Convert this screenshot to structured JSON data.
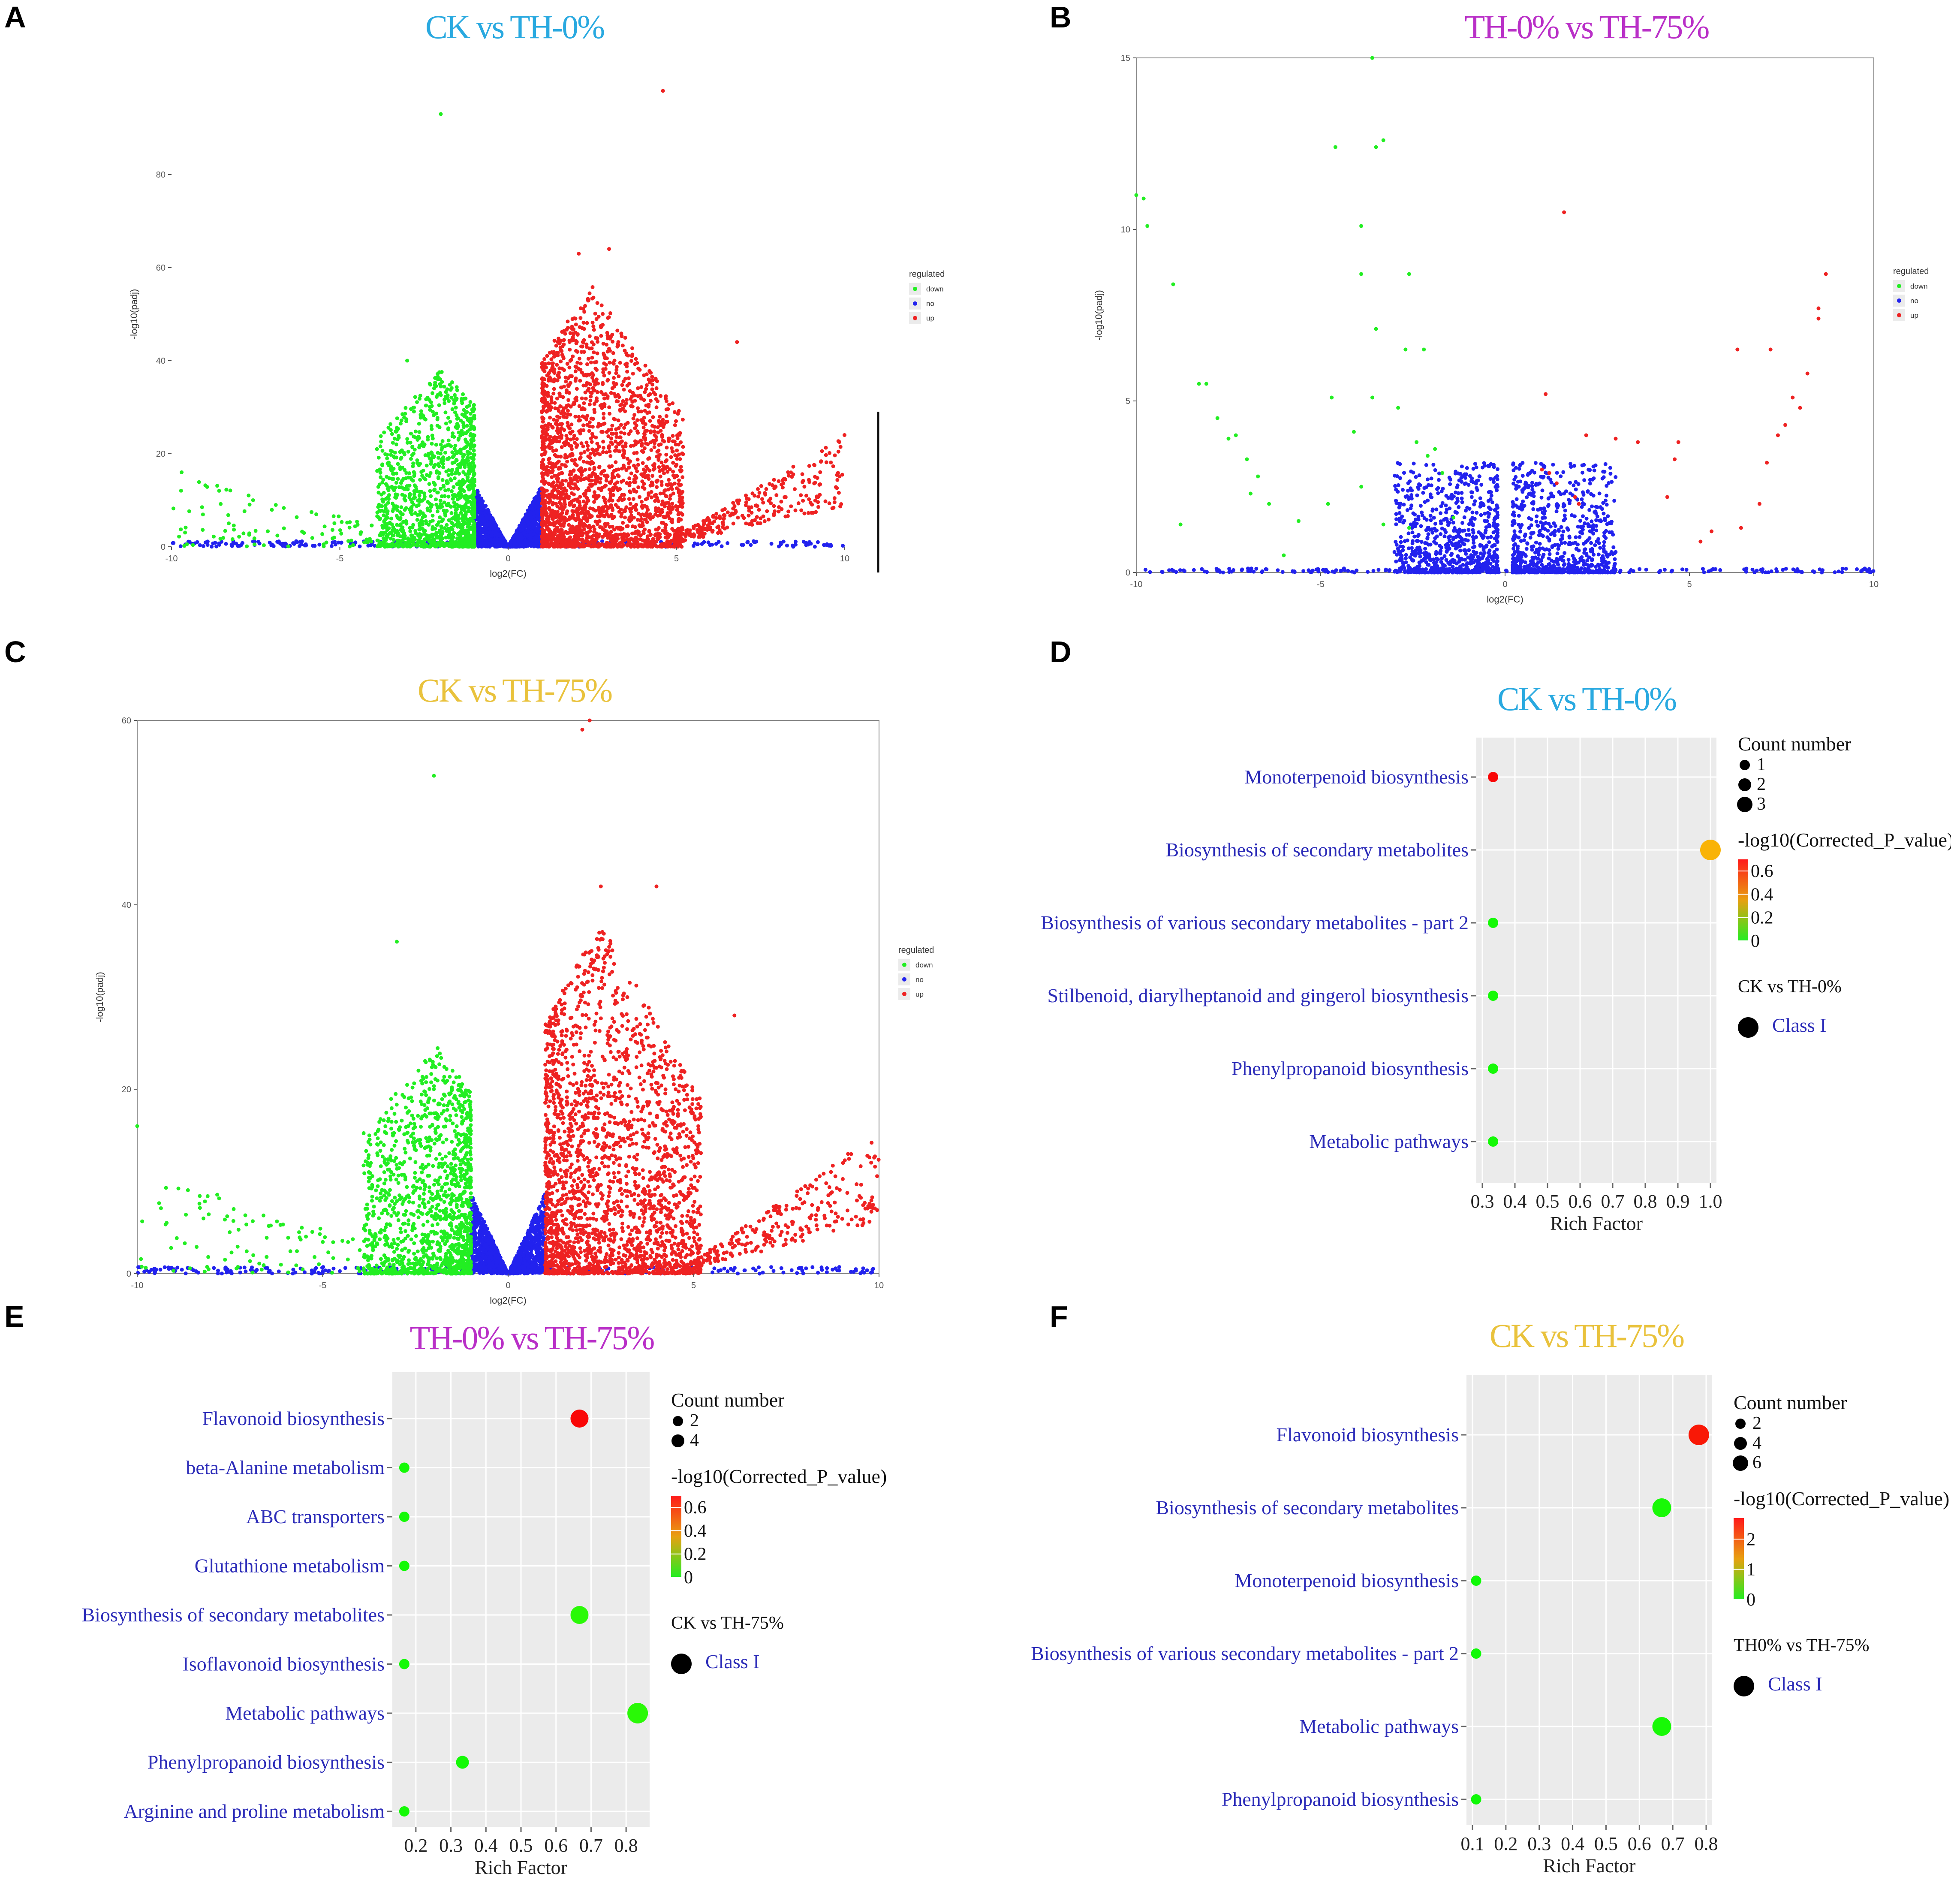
{
  "panels": {
    "A": {
      "label": "A",
      "title": "CK vs TH-0%",
      "title_color": "#29a9e0"
    },
    "B": {
      "label": "B",
      "title": "TH-0% vs TH-75%",
      "title_color": "#b92fc7"
    },
    "C": {
      "label": "C",
      "title": "CK vs TH-75%",
      "title_color": "#e9c23c"
    },
    "D": {
      "label": "D",
      "title": "CK vs TH-0%",
      "title_color": "#29a9e0"
    },
    "E": {
      "label": "E",
      "title": "TH-0% vs TH-75%",
      "title_color": "#b92fc7"
    },
    "F": {
      "label": "F",
      "title": "CK vs TH-75%",
      "title_color": "#e9c23c"
    }
  },
  "colors": {
    "down": "#22ee22",
    "no": "#2222ee",
    "up": "#ee2222",
    "panel_bg": "#ebebeb"
  },
  "chart_data": [
    {
      "id": "A",
      "type": "scatter",
      "title": "CK vs TH-0%",
      "xlabel": "log2(FC)",
      "ylabel": "-log10(padj)",
      "xlim": [
        -10,
        10
      ],
      "ylim": [
        0,
        100
      ],
      "xticks": [
        -10,
        -5,
        0,
        5,
        10
      ],
      "yticks": [
        0,
        20,
        40,
        60,
        80
      ],
      "legend": {
        "title": "regulated",
        "entries": [
          "down",
          "no",
          "up"
        ]
      },
      "highlights": [
        {
          "x": -2.0,
          "y": 93,
          "group": "down"
        },
        {
          "x": 4.6,
          "y": 98,
          "group": "up"
        },
        {
          "x": 2.1,
          "y": 63,
          "group": "up"
        },
        {
          "x": 3.0,
          "y": 64,
          "group": "up"
        },
        {
          "x": 6.8,
          "y": 44,
          "group": "up"
        },
        {
          "x": -3.0,
          "y": 40,
          "group": "down"
        },
        {
          "x": -9.7,
          "y": 16,
          "group": "down"
        }
      ],
      "shape": {
        "down_max": 38,
        "up_max": 56,
        "down_tail_max": 16,
        "up_tail_max": 22,
        "threshold": 1
      }
    },
    {
      "id": "B",
      "type": "scatter",
      "title": "TH-0% vs TH-75%",
      "xlabel": "log2(FC)",
      "ylabel": "-log10(padj)",
      "xlim": [
        -10,
        10
      ],
      "ylim": [
        0,
        15
      ],
      "xticks": [
        -10,
        -5,
        0,
        5,
        10
      ],
      "yticks": [
        0,
        5,
        10,
        15
      ],
      "legend": {
        "title": "regulated",
        "entries": [
          "down",
          "no",
          "up"
        ]
      },
      "down_points": [
        [
          -3.6,
          15
        ],
        [
          -10,
          11.0
        ],
        [
          -9.8,
          10.9
        ],
        [
          -9.7,
          10.1
        ],
        [
          -4.6,
          12.4
        ],
        [
          -3.5,
          12.4
        ],
        [
          -3.3,
          12.6
        ],
        [
          -3.9,
          10.1
        ],
        [
          -3.9,
          8.7
        ],
        [
          -2.6,
          8.7
        ],
        [
          -9.0,
          8.4
        ],
        [
          -3.5,
          7.1
        ],
        [
          -2.2,
          6.5
        ],
        [
          -2.7,
          6.5
        ],
        [
          -8.3,
          5.5
        ],
        [
          -8.1,
          5.5
        ],
        [
          -4.7,
          5.1
        ],
        [
          -3.6,
          5.1
        ],
        [
          -2.9,
          4.8
        ],
        [
          -7.8,
          4.5
        ],
        [
          -7.3,
          4.0
        ],
        [
          -7.5,
          3.9
        ],
        [
          -1.9,
          3.6
        ],
        [
          -2.1,
          3.4
        ],
        [
          -7.0,
          3.3
        ],
        [
          -6.7,
          2.8
        ],
        [
          -6.9,
          2.3
        ],
        [
          -3.9,
          2.5
        ],
        [
          -4.8,
          2.0
        ],
        [
          -6.4,
          2.0
        ],
        [
          -8.8,
          1.4
        ],
        [
          -5.6,
          1.5
        ],
        [
          -3.3,
          1.4
        ],
        [
          -1.4,
          1.6
        ],
        [
          -2.6,
          1.3
        ],
        [
          -4.1,
          4.1
        ],
        [
          -2.4,
          3.8
        ],
        [
          -1.7,
          2.9
        ],
        [
          -6.0,
          0.5
        ]
      ],
      "up_points": [
        [
          1.6,
          10.5
        ],
        [
          8.7,
          8.7
        ],
        [
          8.5,
          7.7
        ],
        [
          8.5,
          7.4
        ],
        [
          6.3,
          6.5
        ],
        [
          7.2,
          6.5
        ],
        [
          8.2,
          5.8
        ],
        [
          1.1,
          5.2
        ],
        [
          7.8,
          5.1
        ],
        [
          8.0,
          4.8
        ],
        [
          7.6,
          4.3
        ],
        [
          7.4,
          4.0
        ],
        [
          7.1,
          3.2
        ],
        [
          4.7,
          3.8
        ],
        [
          2.2,
          4.0
        ],
        [
          3.0,
          3.9
        ],
        [
          3.6,
          3.8
        ],
        [
          4.6,
          3.3
        ],
        [
          6.9,
          2.0
        ],
        [
          1.2,
          2.9
        ],
        [
          1.0,
          3.0
        ],
        [
          1.4,
          2.6
        ],
        [
          4.4,
          2.2
        ],
        [
          5.6,
          1.2
        ],
        [
          5.3,
          0.9
        ],
        [
          6.4,
          1.3
        ],
        [
          2.0,
          2.0
        ],
        [
          1.9,
          2.2
        ]
      ]
    },
    {
      "id": "C",
      "type": "scatter",
      "title": "CK vs TH-75%",
      "xlabel": "log2(FC)",
      "ylabel": "-log10(padj)",
      "xlim": [
        -10,
        10
      ],
      "ylim": [
        0,
        60
      ],
      "xticks": [
        -10,
        -5,
        0,
        5,
        10
      ],
      "yticks": [
        0,
        20,
        40,
        60
      ],
      "legend": {
        "title": "regulated",
        "entries": [
          "down",
          "no",
          "up"
        ]
      },
      "highlights": [
        {
          "x": -2.0,
          "y": 54,
          "group": "down"
        },
        {
          "x": 2.0,
          "y": 59,
          "group": "up"
        },
        {
          "x": 2.2,
          "y": 60,
          "group": "up"
        },
        {
          "x": 2.5,
          "y": 42,
          "group": "up"
        },
        {
          "x": 4.0,
          "y": 42,
          "group": "up"
        },
        {
          "x": 6.1,
          "y": 28,
          "group": "up"
        },
        {
          "x": -3.0,
          "y": 36,
          "group": "down"
        },
        {
          "x": -10,
          "y": 16,
          "group": "down"
        }
      ],
      "shape": {
        "down_max": 25,
        "up_max": 38,
        "down_tail_max": 12,
        "up_tail_max": 14,
        "threshold": 1
      }
    },
    {
      "id": "D",
      "type": "scatter",
      "subtype": "kegg-enrichment",
      "title": "CK vs TH-0%",
      "xlabel": "Rich Factor",
      "xlim": [
        0.3,
        1.0
      ],
      "xticks": [
        "0.3",
        "0.4",
        "0.5",
        "0.6",
        "0.7",
        "0.8",
        "0.9",
        "1.0"
      ],
      "categories": [
        "Monoterpenoid biosynthesis",
        "Biosynthesis of secondary metabolites",
        "Biosynthesis of various secondary metabolites - part 2",
        "Stilbenoid, diarylheptanoid and gingerol biosynthesis",
        "Phenylpropanoid biosynthesis",
        "Metabolic pathways"
      ],
      "rich_factor": [
        0.333,
        1.0,
        0.333,
        0.333,
        0.333,
        0.333
      ],
      "count": [
        1,
        3,
        1,
        1,
        1,
        1
      ],
      "neglog10_p": [
        0.7,
        0.45,
        0.02,
        0.02,
        0.02,
        0.02
      ],
      "legend": {
        "size_title": "Count number",
        "size_entries": [
          "1",
          "2",
          "3"
        ],
        "color_title": "-log10(Corrected_P_value)",
        "color_range": [
          0,
          0.7
        ],
        "color_ticks": [
          "0.6",
          "0.4",
          "0.2",
          "0"
        ],
        "shape_title": "CK vs TH-0%",
        "shape_entry": "Class I"
      }
    },
    {
      "id": "E",
      "type": "scatter",
      "subtype": "kegg-enrichment",
      "title": "TH-0% vs TH-75%",
      "xlabel": "Rich Factor",
      "xlim": [
        0.15,
        0.85
      ],
      "xticks": [
        "0.2",
        "0.3",
        "0.4",
        "0.5",
        "0.6",
        "0.7",
        "0.8"
      ],
      "categories": [
        "Flavonoid biosynthesis",
        "beta-Alanine metabolism",
        "ABC transporters",
        "Glutathione metabolism",
        "Biosynthesis of secondary metabolites",
        "Isoflavonoid biosynthesis",
        "Metabolic pathways",
        "Phenylpropanoid biosynthesis",
        "Arginine and proline metabolism"
      ],
      "rich_factor": [
        0.667,
        0.167,
        0.167,
        0.167,
        0.667,
        0.167,
        0.833,
        0.333,
        0.167
      ],
      "count": [
        4,
        1,
        1,
        1,
        4,
        1,
        5,
        2,
        1
      ],
      "neglog10_p": [
        0.7,
        0.02,
        0.02,
        0.02,
        0.05,
        0.02,
        0.05,
        0.02,
        0.02
      ],
      "legend": {
        "size_title": "Count number",
        "size_entries": [
          "2",
          "4"
        ],
        "color_title": "-log10(Corrected_P_value)",
        "color_range": [
          0,
          0.7
        ],
        "color_ticks": [
          "0.6",
          "0.4",
          "0.2",
          "0"
        ],
        "shape_title": "CK vs TH-75%",
        "shape_entry": "Class I"
      }
    },
    {
      "id": "F",
      "type": "scatter",
      "subtype": "kegg-enrichment",
      "title": "CK vs TH-75%",
      "xlabel": "Rich Factor",
      "xlim": [
        0.1,
        0.8
      ],
      "xticks": [
        "0.1",
        "0.2",
        "0.3",
        "0.4",
        "0.5",
        "0.6",
        "0.7",
        "0.8"
      ],
      "categories": [
        "Flavonoid biosynthesis",
        "Biosynthesis of secondary metabolites",
        "Monoterpenoid biosynthesis",
        "Biosynthesis of various secondary metabolites - part 2",
        "Metabolic pathways",
        "Phenylpropanoid biosynthesis"
      ],
      "rich_factor": [
        0.778,
        0.667,
        0.111,
        0.111,
        0.667,
        0.111
      ],
      "count": [
        7,
        6,
        1,
        1,
        6,
        1
      ],
      "neglog10_p": [
        2.6,
        0.1,
        0.05,
        0.05,
        0.1,
        0.05
      ],
      "legend": {
        "size_title": "Count number",
        "size_entries": [
          "2",
          "4",
          "6"
        ],
        "color_title": "-log10(Corrected_P_value)",
        "color_range": [
          0,
          2.7
        ],
        "color_ticks": [
          "2",
          "1",
          "0"
        ],
        "shape_title": "TH0% vs TH-75%",
        "shape_entry": "Class I"
      }
    }
  ]
}
